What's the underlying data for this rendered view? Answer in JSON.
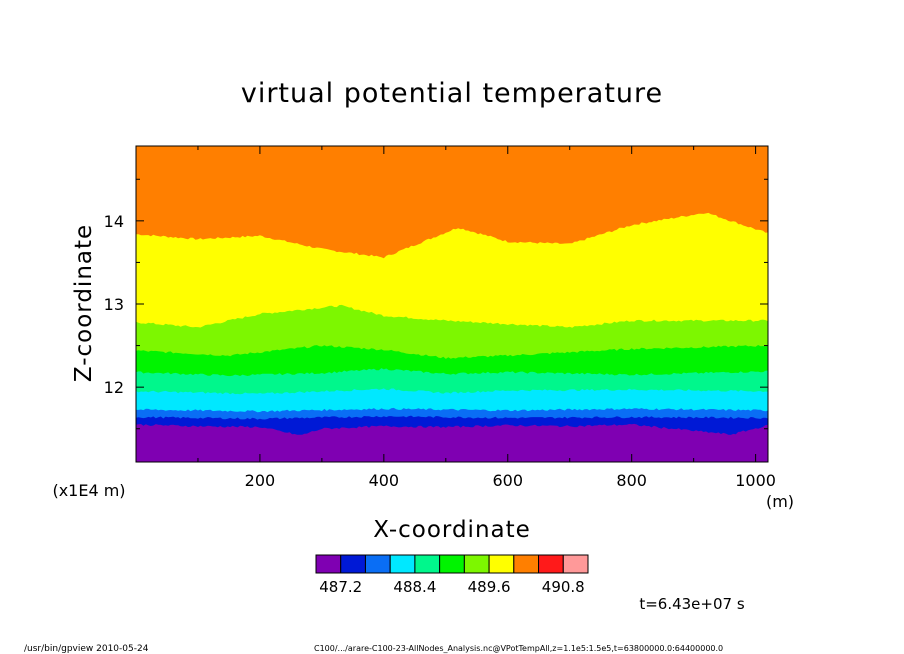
{
  "chart_data": {
    "type": "heatmap",
    "title": "virtual potential temperature",
    "xlabel": "X-coordinate",
    "ylabel": "Z-coordinate",
    "x_unit": "(m)",
    "y_unit": "(x1E4 m)",
    "xlim": [
      0,
      1020
    ],
    "ylim": [
      11.1,
      14.9
    ],
    "x_ticks": [
      "200",
      "400",
      "600",
      "800",
      "1000"
    ],
    "x_tick_values": [
      200,
      400,
      600,
      800,
      1000
    ],
    "y_ticks": [
      "12",
      "13",
      "14"
    ],
    "y_tick_values": [
      12,
      13,
      14
    ],
    "band_colors": [
      "#7f00b2",
      "#0019d6",
      "#0a6ef5",
      "#00e8ff",
      "#00f78c",
      "#00f400",
      "#7df700",
      "#ffff00",
      "#ff7f00",
      "#ff1a1a",
      "#ff9999"
    ],
    "colorbar_labels": [
      "487.2",
      "488.4",
      "489.6",
      "490.8"
    ],
    "colorbar_label_positions": [
      1,
      4,
      7,
      10
    ],
    "contour_boundaries": [
      {
        "x": [
          0,
          100,
          200,
          265,
          300,
          400,
          500,
          600,
          700,
          800,
          960,
          1020
        ],
        "z": [
          11.55,
          11.53,
          11.52,
          11.42,
          11.5,
          11.53,
          11.52,
          11.54,
          11.53,
          11.55,
          11.43,
          11.54
        ]
      },
      {
        "x": [
          0,
          200,
          400,
          600,
          800,
          1020
        ],
        "z": [
          11.64,
          11.62,
          11.65,
          11.63,
          11.64,
          11.63
        ]
      },
      {
        "x": [
          0,
          200,
          400,
          600,
          800,
          1020
        ],
        "z": [
          11.73,
          11.71,
          11.74,
          11.72,
          11.74,
          11.72
        ]
      },
      {
        "x": [
          0,
          200,
          400,
          500,
          600,
          800,
          1020
        ],
        "z": [
          11.95,
          11.92,
          11.98,
          11.93,
          11.96,
          11.97,
          11.95
        ]
      },
      {
        "x": [
          0,
          150,
          300,
          400,
          500,
          600,
          800,
          1020
        ],
        "z": [
          12.18,
          12.14,
          12.17,
          12.22,
          12.16,
          12.18,
          12.15,
          12.19
        ]
      },
      {
        "x": [
          0,
          150,
          300,
          400,
          500,
          600,
          800,
          1020
        ],
        "z": [
          12.44,
          12.38,
          12.5,
          12.45,
          12.35,
          12.38,
          12.46,
          12.5
        ]
      },
      {
        "x": [
          0,
          100,
          200,
          330,
          400,
          500,
          600,
          700,
          800,
          1020
        ],
        "z": [
          12.78,
          12.72,
          12.88,
          12.98,
          12.86,
          12.8,
          12.76,
          12.72,
          12.8,
          12.8
        ]
      },
      {
        "x": [
          0,
          100,
          200,
          300,
          400,
          520,
          600,
          700,
          800,
          920,
          1020
        ],
        "z": [
          13.84,
          13.78,
          13.82,
          13.66,
          13.56,
          13.92,
          13.75,
          13.72,
          13.95,
          14.1,
          13.85
        ]
      }
    ],
    "annotation_time": "t=6.43e+07 s",
    "footer_left": "/usr/bin/gpview   2010-05-24",
    "footer_right": "C100/.../arare-C100-23-AllNodes_Analysis.nc@VPotTempAll,z=1.1e5:1.5e5,t=63800000.0:64400000.0"
  }
}
